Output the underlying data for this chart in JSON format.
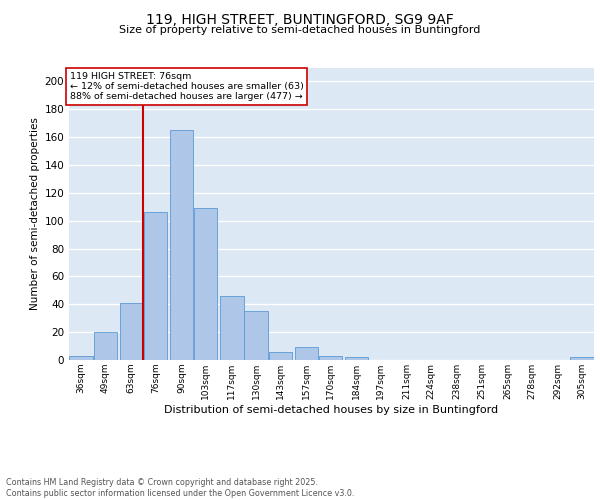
{
  "title1": "119, HIGH STREET, BUNTINGFORD, SG9 9AF",
  "title2": "Size of property relative to semi-detached houses in Buntingford",
  "xlabel": "Distribution of semi-detached houses by size in Buntingford",
  "ylabel": "Number of semi-detached properties",
  "bins": [
    36,
    49,
    63,
    76,
    90,
    103,
    117,
    130,
    143,
    157,
    170,
    184,
    197,
    211,
    224,
    238,
    251,
    265,
    278,
    292,
    305
  ],
  "heights": [
    3,
    20,
    41,
    106,
    165,
    109,
    46,
    35,
    6,
    9,
    3,
    2,
    0,
    0,
    0,
    0,
    0,
    0,
    0,
    0,
    2
  ],
  "bar_color": "#aec6e8",
  "bar_edge_color": "#5b9bd5",
  "vline_x": 76,
  "vline_color": "#cc0000",
  "annotation_title": "119 HIGH STREET: 76sqm",
  "annotation_line1": "← 12% of semi-detached houses are smaller (63)",
  "annotation_line2": "88% of semi-detached houses are larger (477) →",
  "annotation_box_color": "#cc0000",
  "ylim": [
    0,
    210
  ],
  "yticks": [
    0,
    20,
    40,
    60,
    80,
    100,
    120,
    140,
    160,
    180,
    200
  ],
  "background_color": "#dde8f5",
  "grid_color": "#ffffff",
  "footer1": "Contains HM Land Registry data © Crown copyright and database right 2025.",
  "footer2": "Contains public sector information licensed under the Open Government Licence v3.0."
}
